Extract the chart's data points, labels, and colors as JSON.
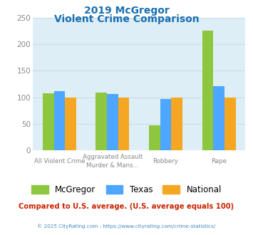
{
  "title_line1": "2019 McGregor",
  "title_line2": "Violent Crime Comparison",
  "title_color": "#1a6faf",
  "cat_labels_line1": [
    "All Violent Crime",
    "Aggravated Assault",
    "Robbery",
    "Rape"
  ],
  "cat_labels_line2": [
    "",
    "Murder & Mans...",
    "",
    ""
  ],
  "series": {
    "McGregor": [
      107,
      109,
      47,
      225
    ],
    "Texas": [
      112,
      106,
      97,
      121
    ],
    "National": [
      100,
      100,
      100,
      100
    ]
  },
  "colors": {
    "McGregor": "#8dc63f",
    "Texas": "#4da6ff",
    "National": "#f5a623"
  },
  "ylim": [
    0,
    250
  ],
  "yticks": [
    0,
    50,
    100,
    150,
    200,
    250
  ],
  "background_color": "#ddeef6",
  "grid_color": "#c8dde8",
  "legend_labels": [
    "McGregor",
    "Texas",
    "National"
  ],
  "footnote": "Compared to U.S. average. (U.S. average equals 100)",
  "footnote_color": "#cc2200",
  "copyright": "© 2025 CityRating.com - https://www.cityrating.com/crime-statistics/",
  "copyright_color": "#4488bb"
}
